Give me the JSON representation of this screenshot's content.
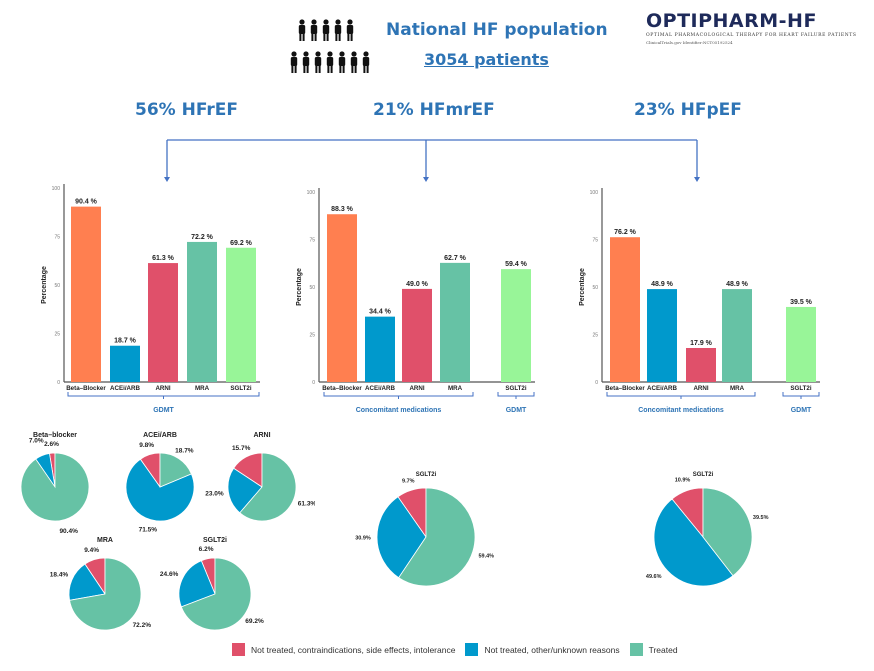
{
  "header": {
    "title": "National HF population",
    "patients": "3054 patients",
    "people_icon": "people-group-icon"
  },
  "logo": {
    "name": "OPTIPHARM-HF",
    "subtitle": "OPTIMAL PHARMACOLOGICAL THERAPY FOR HEART FAILURE PATIENTS",
    "identifier": "ClinicalTrials.gov Identifier:NCT05192524"
  },
  "groups": [
    {
      "label": "56% HFrEF"
    },
    {
      "label": "21% HFmrEF"
    },
    {
      "label": "23% HFpEF"
    }
  ],
  "colors": {
    "beta_blocker": "#ff7f50",
    "acei_arb": "#0099cc",
    "arni": "#e0506a",
    "mra": "#66c2a5",
    "sglt2i": "#98f598",
    "not_treated_contra": "#e0506a",
    "not_treated_other": "#0099cc",
    "treated": "#66c2a5",
    "accent": "#2e74b5"
  },
  "chart_data": [
    {
      "type": "bar",
      "id": "hfref-bar",
      "title": "HFrEF",
      "categories": [
        "Beta–Blocker",
        "ACEi/ARB",
        "ARNI",
        "MRA",
        "SGLT2i"
      ],
      "values": [
        90.4,
        18.7,
        61.3,
        72.2,
        69.2
      ],
      "value_labels": [
        "90.4 %",
        "18.7 %",
        "61.3 %",
        "72.2 %",
        "69.2 %"
      ],
      "xlabel": "",
      "ylabel": "Percentage",
      "ylim": [
        0,
        100
      ],
      "yticks": [
        "0",
        "25",
        "50",
        "75",
        "100"
      ],
      "brackets": [
        {
          "label": "GDMT",
          "from": 0,
          "to": 4
        }
      ]
    },
    {
      "type": "bar",
      "id": "hfmref-bar",
      "title": "HFmrEF",
      "categories": [
        "Beta–Blocker",
        "ACEi/ARB",
        "ARNI",
        "MRA",
        "SGLT2i"
      ],
      "values": [
        88.3,
        34.4,
        49.0,
        62.7,
        59.4
      ],
      "value_labels": [
        "88.3 %",
        "34.4 %",
        "49.0 %",
        "62.7 %",
        "59.4 %"
      ],
      "xlabel": "",
      "ylabel": "Percentage",
      "ylim": [
        0,
        100
      ],
      "yticks": [
        "0",
        "25",
        "50",
        "75",
        "100"
      ],
      "brackets": [
        {
          "label": "Concomitant medications",
          "from": 0,
          "to": 3
        },
        {
          "label": "GDMT",
          "from": 4,
          "to": 4
        }
      ]
    },
    {
      "type": "bar",
      "id": "hfpef-bar",
      "title": "HFpEF",
      "categories": [
        "Beta–Blocker",
        "ACEi/ARB",
        "ARNI",
        "MRA",
        "SGLT2i"
      ],
      "values": [
        76.2,
        48.9,
        17.9,
        48.9,
        39.5
      ],
      "value_labels": [
        "76.2 %",
        "48.9 %",
        "17.9 %",
        "48.9 %",
        "39.5 %"
      ],
      "xlabel": "",
      "ylabel": "Percentage",
      "ylim": [
        0,
        100
      ],
      "yticks": [
        "0",
        "25",
        "50",
        "75",
        "100"
      ],
      "brackets": [
        {
          "label": "Concomitant medications",
          "from": 0,
          "to": 3
        },
        {
          "label": "GDMT",
          "from": 4,
          "to": 4
        }
      ]
    },
    {
      "type": "pie",
      "id": "pie-hfref-bb",
      "title": "Beta–blocker",
      "labels": [
        "Not treated, contraindications, side effects, intolerance",
        "Not treated, other/unknown reasons",
        "Treated"
      ],
      "values": [
        2.6,
        7.0,
        90.4
      ],
      "value_labels": [
        "2.6%",
        "7.0%",
        "90.4%"
      ]
    },
    {
      "type": "pie",
      "id": "pie-hfref-acei",
      "title": "ACEi/ARB",
      "labels": [
        "Not treated, contraindications, side effects, intolerance",
        "Not treated, other/unknown reasons",
        "Treated"
      ],
      "values": [
        9.8,
        71.5,
        18.7
      ],
      "value_labels": [
        "9.8%",
        "71.5%",
        "18.7%"
      ]
    },
    {
      "type": "pie",
      "id": "pie-hfref-arni",
      "title": "ARNI",
      "labels": [
        "Not treated, contraindications, side effects, intolerance",
        "Not treated, other/unknown reasons",
        "Treated"
      ],
      "values": [
        15.7,
        23.0,
        61.3
      ],
      "value_labels": [
        "15.7%",
        "23.0%",
        "61.3%"
      ]
    },
    {
      "type": "pie",
      "id": "pie-hfref-mra",
      "title": "MRA",
      "labels": [
        "Not treated, contraindications, side effects, intolerance",
        "Not treated, other/unknown reasons",
        "Treated"
      ],
      "values": [
        9.4,
        18.4,
        72.2
      ],
      "value_labels": [
        "9.4%",
        "18.4%",
        "72.2%"
      ]
    },
    {
      "type": "pie",
      "id": "pie-hfref-sglt2i",
      "title": "SGLT2i",
      "labels": [
        "Not treated, contraindications, side effects, intolerance",
        "Not treated, other/unknown reasons",
        "Treated"
      ],
      "values": [
        6.2,
        24.6,
        69.2
      ],
      "value_labels": [
        "6.2%",
        "24.6%",
        "69.2%"
      ]
    },
    {
      "type": "pie",
      "id": "pie-hfmref-sglt2i",
      "title": "SGLT2i",
      "labels": [
        "Not treated, contraindications, side effects, intolerance",
        "Not treated, other/unknown reasons",
        "Treated"
      ],
      "values": [
        9.7,
        30.9,
        59.4
      ],
      "value_labels": [
        "9.7%",
        "30.9%",
        "59.4%"
      ]
    },
    {
      "type": "pie",
      "id": "pie-hfpef-sglt2i",
      "title": "SGLT2i",
      "labels": [
        "Not treated, contraindications, side effects, intolerance",
        "Not treated, other/unknown reasons",
        "Treated"
      ],
      "values": [
        10.9,
        49.6,
        39.5
      ],
      "value_labels": [
        "10.9%",
        "49.6%",
        "39.5%"
      ]
    }
  ],
  "legend": {
    "items": [
      {
        "label": "Not treated, contraindications, side effects, intolerance",
        "color": "#e0506a"
      },
      {
        "label": "Not treated, other/unknown reasons",
        "color": "#0099cc"
      },
      {
        "label": "Treated",
        "color": "#66c2a5"
      }
    ]
  }
}
